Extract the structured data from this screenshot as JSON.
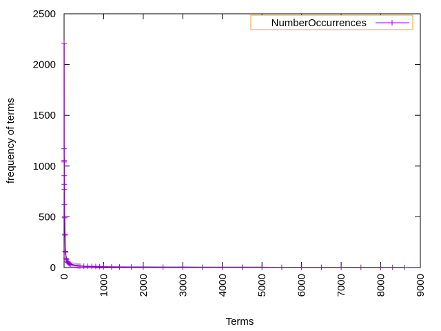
{
  "chart_data": {
    "type": "line",
    "xlabel": "Terms",
    "ylabel": "frequency of terms",
    "xlim": [
      0,
      9000
    ],
    "ylim": [
      0,
      2500
    ],
    "x_ticks": [
      0,
      1000,
      2000,
      3000,
      4000,
      5000,
      6000,
      7000,
      8000,
      9000
    ],
    "y_ticks": [
      0,
      500,
      1000,
      1500,
      2000,
      2500
    ],
    "x_tick_rotation": "vertical",
    "grid": false,
    "legend_position": "top-right",
    "series": [
      {
        "name": "NumberOccurrences",
        "color": "#9400d3",
        "marker": "plus",
        "x": [
          1,
          2,
          3,
          4,
          5,
          6,
          8,
          10,
          13,
          16,
          20,
          25,
          30,
          40,
          50,
          60,
          75,
          90,
          110,
          130,
          160,
          200,
          250,
          300,
          350,
          400,
          500,
          600,
          700,
          800,
          900,
          1000,
          1200,
          1400,
          1700,
          2000,
          2500,
          3000,
          3500,
          4000,
          4500,
          5000,
          5500,
          6000,
          6500,
          7000,
          7500,
          8000,
          8300,
          8600
        ],
        "y": [
          2210,
          1170,
          1055,
          1040,
          905,
          820,
          770,
          620,
          500,
          490,
          330,
          320,
          160,
          150,
          90,
          80,
          60,
          52,
          45,
          38,
          32,
          27,
          23,
          20,
          17,
          15,
          13,
          12,
          11,
          10,
          9,
          8,
          7,
          6,
          5,
          5,
          4,
          4,
          3,
          3,
          3,
          3,
          2,
          2,
          2,
          2,
          2,
          1,
          1,
          1
        ]
      }
    ]
  }
}
